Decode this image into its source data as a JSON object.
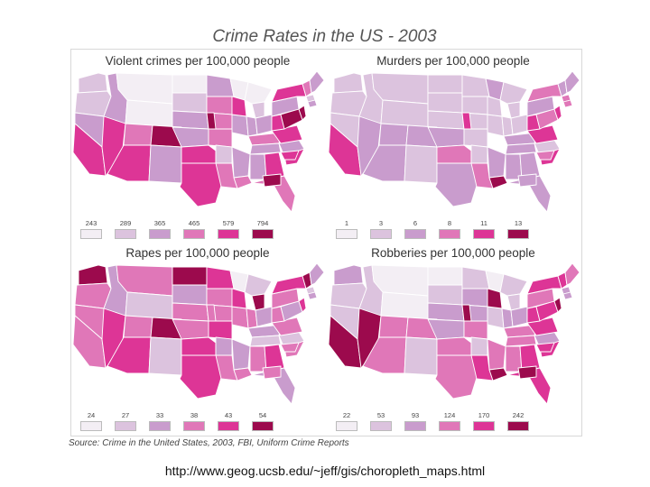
{
  "title": "Crime Rates in the US - 2003",
  "source": "Source: Crime in the United States, 2003, FBI, Uniform Crime Reports",
  "url": "http://www.geog.ucsb.edu/~jeff/gis/choropleth_maps.html",
  "palette": [
    "#f3eef4",
    "#dcc3de",
    "#c99ccd",
    "#e077b8",
    "#dd3596",
    "#9c0a4d"
  ],
  "panels": [
    {
      "title": "Violent crimes per 100,000 people",
      "legend": [
        "243",
        "289",
        "365",
        "465",
        "579",
        "794"
      ],
      "classes": [
        1,
        1,
        2,
        0,
        0,
        2,
        0,
        1,
        2,
        4,
        4,
        3,
        5,
        4,
        2,
        2,
        3,
        3,
        2,
        4,
        4,
        0,
        2,
        4,
        3,
        1,
        0,
        1,
        2,
        2,
        3,
        2,
        2,
        3,
        2,
        4,
        3,
        2,
        4,
        4,
        4,
        5,
        2,
        4,
        5,
        3,
        2,
        1,
        2,
        3,
        5,
        4,
        5
      ]
    },
    {
      "title": "Murders per 100,000 people",
      "legend": [
        "1",
        "3",
        "6",
        "8",
        "11",
        "13"
      ],
      "classes": [
        1,
        1,
        1,
        1,
        1,
        1,
        1,
        1,
        1,
        4,
        2,
        2,
        2,
        2,
        1,
        1,
        1,
        1,
        2,
        3,
        2,
        2,
        1,
        1,
        1,
        1,
        1,
        1,
        1,
        1,
        2,
        2,
        2,
        3,
        2,
        2,
        2,
        1,
        4,
        4,
        4,
        3,
        2,
        3,
        4,
        2,
        2,
        3,
        3,
        5,
        4,
        3,
        2
      ]
    },
    {
      "title": "Rapes per 100,000 people",
      "legend": [
        "24",
        "27",
        "33",
        "38",
        "43",
        "54"
      ],
      "classes": [
        5,
        3,
        2,
        3,
        1,
        3,
        5,
        2,
        3,
        3,
        4,
        3,
        5,
        4,
        1,
        4,
        3,
        3,
        3,
        4,
        4,
        0,
        3,
        4,
        4,
        2,
        1,
        5,
        3,
        2,
        2,
        1,
        2,
        3,
        3,
        4,
        2,
        1,
        3,
        3,
        3,
        2,
        3,
        4,
        4,
        5,
        2,
        1,
        2,
        3,
        3,
        3,
        3
      ]
    },
    {
      "title": "Robberies per 100,000 people",
      "legend": [
        "22",
        "53",
        "93",
        "124",
        "170",
        "242"
      ],
      "classes": [
        2,
        1,
        1,
        0,
        0,
        1,
        0,
        1,
        2,
        5,
        5,
        3,
        3,
        3,
        1,
        1,
        2,
        2,
        2,
        3,
        3,
        0,
        1,
        5,
        3,
        1,
        1,
        1,
        2,
        2,
        3,
        3,
        3,
        4,
        3,
        4,
        4,
        2,
        4,
        4,
        4,
        4,
        3,
        4,
        5,
        4,
        3,
        2,
        2,
        5,
        5,
        4,
        5
      ]
    }
  ]
}
